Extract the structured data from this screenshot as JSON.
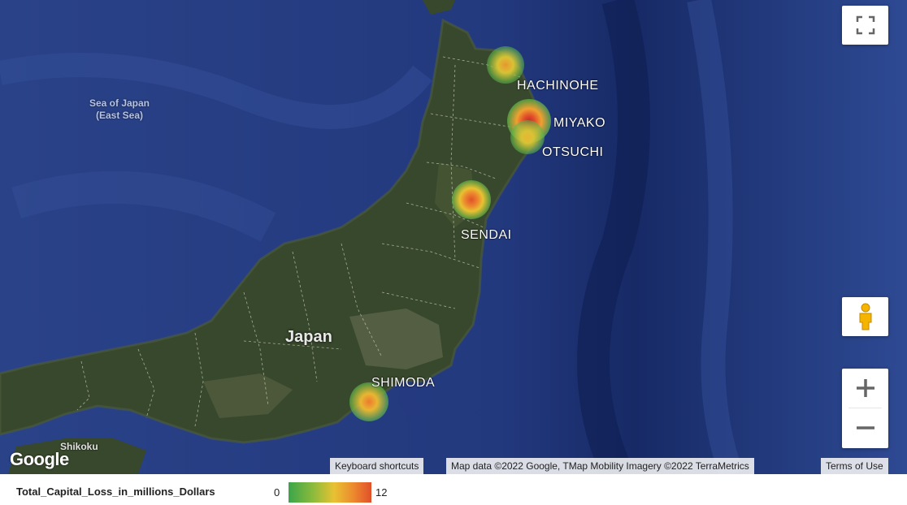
{
  "map": {
    "sea_label": "Sea of Japan\n(East Sea)",
    "country_label": "Japan",
    "island_label": "Shikoku",
    "cities": [
      {
        "name": "HACHINOHE",
        "value": 4
      },
      {
        "name": "MIYAKO",
        "value": 12
      },
      {
        "name": "OTSUCHI",
        "value": 3
      },
      {
        "name": "SENDAI",
        "value": 8
      },
      {
        "name": "SHIMODA",
        "value": 6
      }
    ]
  },
  "controls": {
    "fullscreen_icon": "fullscreen-icon",
    "pegman_icon": "pegman-icon",
    "zoom_in_icon": "plus-icon",
    "zoom_out_icon": "minus-icon"
  },
  "branding": {
    "logo": "Google"
  },
  "attribution": {
    "keyboard": "Keyboard shortcuts",
    "mapdata": "Map data ©2022 Google, TMap Mobility Imagery ©2022 TerraMetrics",
    "terms": "Terms of Use"
  },
  "legend": {
    "title": "Total_Capital_Loss_in_millions_Dollars",
    "min": "0",
    "max": "12",
    "colors": [
      "#3aa54a",
      "#8dbb3c",
      "#e8c232",
      "#ec8a2e",
      "#e0502a"
    ]
  }
}
